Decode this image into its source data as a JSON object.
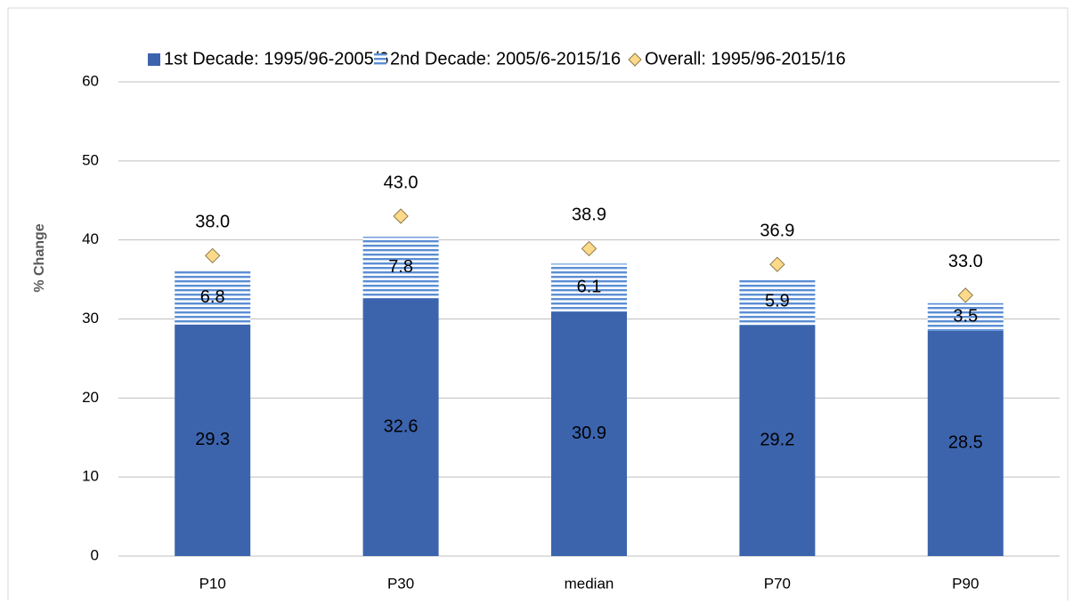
{
  "chart_data": {
    "type": "bar",
    "stacked": true,
    "y_label": "% Change",
    "categories": [
      "P10",
      "P30",
      "median",
      "P70",
      "P90"
    ],
    "series": [
      {
        "name": "1st Decade: 1995/96-2005/6",
        "color": "#3c64ad",
        "pattern": "solid",
        "values": [
          29.3,
          32.6,
          30.9,
          29.2,
          28.5
        ],
        "value_labels": [
          "29.3",
          "32.6",
          "30.9",
          "29.2",
          "28.5"
        ]
      },
      {
        "name": "2nd Decade: 2005/6-2015/16",
        "color": "#5b8ed4",
        "pattern": "horizontal-stripes",
        "values": [
          6.8,
          7.8,
          6.1,
          5.9,
          3.5
        ],
        "value_labels": [
          "6.8",
          "7.8",
          "6.1",
          "5.9",
          "3.5"
        ]
      },
      {
        "name": "Overall: 1995/96-2015/16",
        "color": "#fdd98a",
        "type": "scatter",
        "marker": "diamond",
        "values": [
          38.0,
          43.0,
          38.9,
          36.9,
          33.0
        ],
        "value_labels": [
          "38.0",
          "43.0",
          "38.9",
          "36.9",
          "33.0"
        ]
      }
    ],
    "ylim": [
      0,
      60
    ],
    "yticks": [
      0,
      10,
      20,
      30,
      40,
      50,
      60
    ],
    "grid": true,
    "legend": "top"
  }
}
